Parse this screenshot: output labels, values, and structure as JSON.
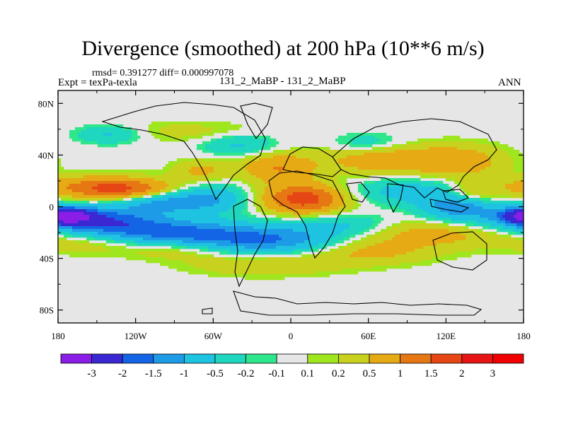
{
  "header": {
    "title": "Divergence (smoothed) at 200 hPa (10**6 m/s)",
    "stats": "rmsd= 0.391277 diff= 0.000997078",
    "expt": "Expt = texPa-texla",
    "case": "131_2_MaBP - 131_2_MaBP",
    "season": "ANN"
  },
  "chart_data": {
    "type": "heatmap",
    "title": "Divergence (smoothed) at 200 hPa (10**6 m/s)",
    "projection": "cylindrical equidistant",
    "xlim": [
      -180,
      180
    ],
    "ylim": [
      -90,
      90
    ],
    "x_ticks": [
      {
        "value": -180,
        "label": "180"
      },
      {
        "value": -120,
        "label": "120W"
      },
      {
        "value": -60,
        "label": "60W"
      },
      {
        "value": 0,
        "label": "0"
      },
      {
        "value": 60,
        "label": "60E"
      },
      {
        "value": 120,
        "label": "120E"
      },
      {
        "value": 180,
        "label": "180"
      }
    ],
    "y_ticks": [
      {
        "value": 80,
        "label": "80N"
      },
      {
        "value": 40,
        "label": "40N"
      },
      {
        "value": 0,
        "label": "0"
      },
      {
        "value": -40,
        "label": "40S"
      },
      {
        "value": -80,
        "label": "80S"
      }
    ],
    "colorbar": {
      "levels": [
        "-3",
        "-2",
        "-1.5",
        "-1",
        "-0.5",
        "-0.2",
        "-0.1",
        "0.1",
        "0.2",
        "0.5",
        "1",
        "1.5",
        "2",
        "3"
      ],
      "colors": [
        "#8a1ee6",
        "#3a28d2",
        "#1464e6",
        "#1e9be6",
        "#1ec3e1",
        "#1ed7be",
        "#2ee68c",
        "#e6e6e6",
        "#a0e61e",
        "#c8d21e",
        "#e6aa14",
        "#e67814",
        "#e64614",
        "#e61414",
        "#f00000"
      ]
    },
    "features": [
      {
        "lon": -175,
        "lat": -7,
        "value": -3.0,
        "slon": 14,
        "slat": 4
      },
      {
        "lon": -155,
        "lat": -10,
        "value": -1.8,
        "slon": 35,
        "slat": 7
      },
      {
        "lon": -110,
        "lat": -20,
        "value": -1.5,
        "slon": 45,
        "slat": 7
      },
      {
        "lon": -60,
        "lat": -25,
        "value": -0.9,
        "slon": 45,
        "slat": 8
      },
      {
        "lon": -10,
        "lat": -26,
        "value": -1.0,
        "slon": 35,
        "slat": 7
      },
      {
        "lon": 40,
        "lat": -14,
        "value": -0.6,
        "slon": 30,
        "slat": 6
      },
      {
        "lon": -100,
        "lat": 4,
        "value": -1.3,
        "slon": 25,
        "slat": 6
      },
      {
        "lon": -60,
        "lat": 6,
        "value": -0.8,
        "slon": 20,
        "slat": 8
      },
      {
        "lon": 90,
        "lat": 12,
        "value": -0.7,
        "slon": 30,
        "slat": 7
      },
      {
        "lon": 130,
        "lat": 0,
        "value": -1.4,
        "slon": 20,
        "slat": 8
      },
      {
        "lon": -140,
        "lat": 56,
        "value": -0.6,
        "slon": 18,
        "slat": 5
      },
      {
        "lon": -40,
        "lat": 48,
        "value": -0.6,
        "slon": 20,
        "slat": 6
      },
      {
        "lon": 60,
        "lat": 48,
        "value": -0.5,
        "slon": 20,
        "slat": 6
      },
      {
        "lon": -150,
        "lat": 15,
        "value": 1.2,
        "slon": 30,
        "slat": 6
      },
      {
        "lon": -120,
        "lat": 12,
        "value": 1.0,
        "slon": 25,
        "slat": 6
      },
      {
        "lon": -150,
        "lat": -25,
        "value": 0.8,
        "slon": 35,
        "slat": 7
      },
      {
        "lon": -85,
        "lat": -32,
        "value": 0.7,
        "slon": 30,
        "slat": 6
      },
      {
        "lon": 10,
        "lat": 6,
        "value": 1.8,
        "slon": 22,
        "slat": 8
      },
      {
        "lon": -10,
        "lat": 30,
        "value": 1.0,
        "slon": 20,
        "slat": 8
      },
      {
        "lon": 70,
        "lat": 37,
        "value": 0.9,
        "slon": 30,
        "slat": 8
      },
      {
        "lon": 130,
        "lat": 35,
        "value": 0.8,
        "slon": 25,
        "slat": 9
      },
      {
        "lon": -70,
        "lat": 28,
        "value": 0.6,
        "slon": 15,
        "slat": 6
      },
      {
        "lon": 110,
        "lat": -20,
        "value": 0.7,
        "slon": 40,
        "slat": 8
      },
      {
        "lon": 60,
        "lat": -35,
        "value": 0.6,
        "slon": 35,
        "slat": 7
      },
      {
        "lon": -20,
        "lat": -45,
        "value": 0.5,
        "slon": 40,
        "slat": 6
      },
      {
        "lon": 140,
        "lat": 10,
        "value": 0.9,
        "slon": 15,
        "slat": 6
      },
      {
        "lon": -80,
        "lat": 58,
        "value": 0.3,
        "slon": 40,
        "slat": 6
      }
    ]
  }
}
